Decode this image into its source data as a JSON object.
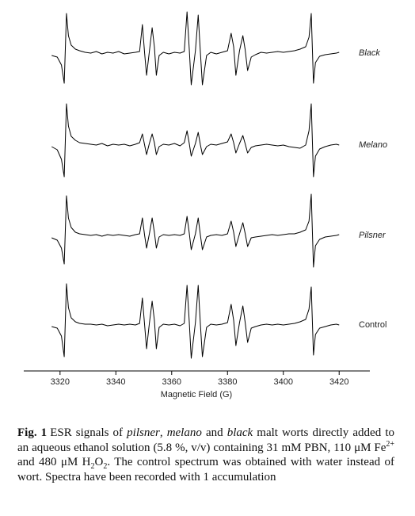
{
  "chart_data": {
    "type": "line",
    "xlabel": "Magnetic Field (G)",
    "xlim": [
      3307,
      3431
    ],
    "xticks": [
      3320,
      3340,
      3360,
      3380,
      3400,
      3420
    ],
    "x": [
      3317,
      3319,
      3320.5,
      3321.5,
      3322.3,
      3323,
      3324,
      3325.5,
      3327,
      3329,
      3331,
      3333,
      3335,
      3337,
      3339,
      3341,
      3343,
      3345,
      3347,
      3348.5,
      3349.5,
      3350.3,
      3351,
      3352,
      3353,
      3353.8,
      3354.5,
      3355.5,
      3357,
      3359,
      3361,
      3363,
      3364.5,
      3365.5,
      3366.3,
      3367,
      3368.5,
      3369.5,
      3370.3,
      3371,
      3372.5,
      3374,
      3376,
      3378,
      3380,
      3381.3,
      3382.2,
      3383,
      3384.3,
      3385.5,
      3386.3,
      3387.2,
      3388.5,
      3390,
      3392,
      3394,
      3396,
      3398,
      3400,
      3402,
      3404,
      3406,
      3408,
      3409.2,
      3410,
      3410.8,
      3411.5,
      3413,
      3415,
      3417,
      3419,
      3420
    ],
    "series": [
      {
        "name": "Black",
        "color": "#000000",
        "values": [
          -3,
          -5,
          -15,
          -38,
          50,
          22,
          10,
          5,
          3,
          1,
          0,
          2,
          -1,
          1,
          0,
          2,
          -1,
          0,
          1,
          2,
          36,
          0,
          -28,
          2,
          32,
          8,
          -28,
          -3,
          1,
          -1,
          1,
          0,
          2,
          52,
          5,
          -40,
          3,
          48,
          0,
          -40,
          -3,
          1,
          -1,
          1,
          3,
          25,
          8,
          -28,
          3,
          22,
          5,
          -22,
          -5,
          -2,
          1,
          0,
          1,
          2,
          1,
          2,
          3,
          5,
          8,
          20,
          50,
          -38,
          -12,
          -4,
          -2,
          -1,
          0,
          1
        ]
      },
      {
        "name": "Melano",
        "color": "#000000",
        "values": [
          -2,
          -6,
          -18,
          -40,
          52,
          24,
          11,
          6,
          3,
          2,
          1,
          0,
          2,
          -1,
          1,
          0,
          1,
          -1,
          1,
          3,
          14,
          0,
          -12,
          2,
          14,
          3,
          -12,
          -2,
          1,
          0,
          2,
          -1,
          3,
          18,
          2,
          -14,
          2,
          16,
          0,
          -12,
          -2,
          1,
          0,
          2,
          4,
          14,
          3,
          -10,
          2,
          12,
          2,
          -10,
          -3,
          -1,
          0,
          1,
          0,
          -1,
          0,
          -2,
          -3,
          -4,
          0,
          18,
          52,
          -40,
          -14,
          -5,
          -2,
          0,
          1,
          0
        ]
      },
      {
        "name": "Pilsner",
        "color": "#000000",
        "values": [
          -3,
          -6,
          -16,
          -36,
          50,
          22,
          10,
          4,
          2,
          1,
          0,
          1,
          -1,
          1,
          0,
          1,
          0,
          -1,
          1,
          2,
          22,
          0,
          -16,
          2,
          22,
          4,
          -16,
          -2,
          1,
          0,
          1,
          0,
          2,
          24,
          3,
          -18,
          2,
          22,
          0,
          -18,
          -2,
          0,
          1,
          0,
          2,
          18,
          4,
          -14,
          2,
          16,
          3,
          -14,
          -3,
          -2,
          -1,
          0,
          1,
          0,
          1,
          2,
          2,
          4,
          7,
          18,
          52,
          -40,
          -13,
          -5,
          -2,
          -1,
          0,
          1
        ]
      },
      {
        "name": "Control",
        "color": "#000000",
        "values": [
          -2,
          -4,
          -14,
          -40,
          52,
          22,
          9,
          4,
          2,
          1,
          1,
          0,
          1,
          -1,
          0,
          1,
          0,
          1,
          0,
          2,
          34,
          0,
          -30,
          2,
          30,
          6,
          -30,
          -3,
          1,
          0,
          1,
          -1,
          2,
          50,
          4,
          -42,
          3,
          50,
          0,
          -40,
          -3,
          1,
          0,
          1,
          3,
          26,
          6,
          -26,
          3,
          24,
          4,
          -22,
          -4,
          -2,
          0,
          1,
          0,
          1,
          0,
          1,
          2,
          4,
          7,
          20,
          48,
          -38,
          -12,
          -4,
          -2,
          0,
          1,
          0
        ]
      }
    ]
  },
  "caption": {
    "label": "Fig. 1",
    "runs": [
      "ESR signals of ",
      "pilsner",
      ", ",
      "melano",
      " and ",
      "black",
      " malt worts directly added to an aqueous ethanol solution (5.8 %, v/v) containing 31 mM PBN, 110 μM Fe",
      "2+",
      " and 480 μM H",
      "2",
      "O",
      "2",
      ". The control spectrum was obtained with water instead of wort. Spectra have been recorded with 1 accumulation"
    ]
  }
}
